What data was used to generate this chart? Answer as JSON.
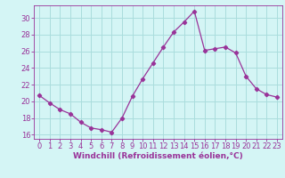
{
  "x": [
    0,
    1,
    2,
    3,
    4,
    5,
    6,
    7,
    8,
    9,
    10,
    11,
    12,
    13,
    14,
    15,
    16,
    17,
    18,
    19,
    20,
    21,
    22,
    23
  ],
  "y": [
    20.7,
    19.8,
    19.0,
    18.5,
    17.5,
    16.8,
    16.6,
    16.3,
    18.0,
    20.6,
    22.7,
    24.6,
    26.5,
    28.3,
    29.5,
    30.8,
    26.1,
    26.3,
    26.5,
    25.8,
    23.0,
    21.5,
    20.8,
    20.5
  ],
  "line_color": "#993399",
  "marker": "D",
  "marker_size": 2.2,
  "bg_color": "#d4f5f5",
  "grid_color": "#aadddd",
  "xlabel": "Windchill (Refroidissement éolien,°C)",
  "ylabel": "",
  "ylim": [
    15.5,
    31.5
  ],
  "xlim": [
    -0.5,
    23.5
  ],
  "yticks": [
    16,
    18,
    20,
    22,
    24,
    26,
    28,
    30
  ],
  "xticks": [
    0,
    1,
    2,
    3,
    4,
    5,
    6,
    7,
    8,
    9,
    10,
    11,
    12,
    13,
    14,
    15,
    16,
    17,
    18,
    19,
    20,
    21,
    22,
    23
  ],
  "axis_color": "#993399",
  "font_size": 6.0,
  "xlabel_fontsize": 6.5,
  "linewidth": 0.9
}
